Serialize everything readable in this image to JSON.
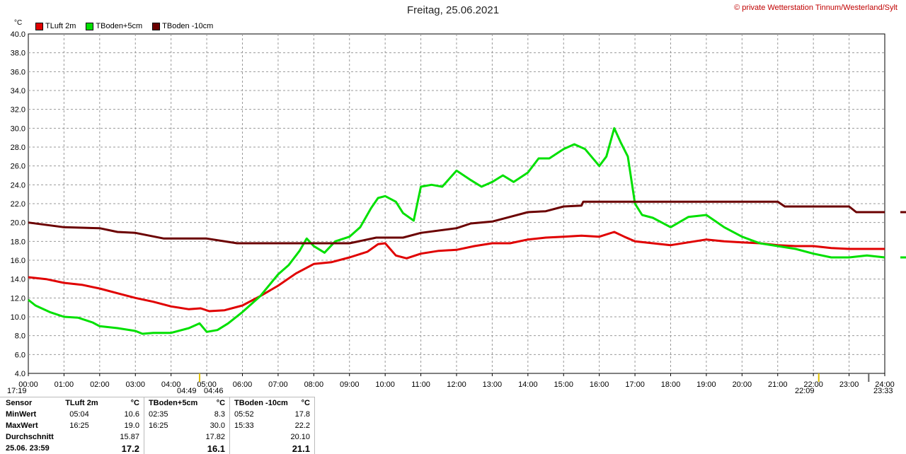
{
  "header": {
    "title": "Freitag, 25.06.2021",
    "credit": "© private Wetterstation Tinnum/Westerland/Sylt"
  },
  "chart_data": {
    "type": "line",
    "ylabel": "°C",
    "ylim": [
      4,
      40
    ],
    "yticks": [
      "4.0",
      "6.0",
      "8.0",
      "10.0",
      "12.0",
      "14.0",
      "16.0",
      "18.0",
      "20.0",
      "22.0",
      "24.0",
      "26.0",
      "28.0",
      "30.0",
      "32.0",
      "34.0",
      "36.0",
      "38.0",
      "40.0"
    ],
    "xlim": [
      0,
      24
    ],
    "xticks": [
      "00:00",
      "01:00",
      "02:00",
      "03:00",
      "04:00",
      "05:00",
      "06:00",
      "07:00",
      "08:00",
      "09:00",
      "10:00",
      "11:00",
      "12:00",
      "13:00",
      "14:00",
      "15:00",
      "16:00",
      "17:00",
      "18:00",
      "19:00",
      "20:00",
      "21:00",
      "22:00",
      "23:00",
      "24:00"
    ],
    "grid": true,
    "legend_position": "top-left",
    "series": [
      {
        "name": "TLuft 2m",
        "color": "#e00000",
        "points": [
          [
            0,
            14.2
          ],
          [
            0.5,
            14.0
          ],
          [
            1,
            13.6
          ],
          [
            1.5,
            13.4
          ],
          [
            2,
            13.0
          ],
          [
            2.5,
            12.5
          ],
          [
            3,
            12.0
          ],
          [
            3.5,
            11.6
          ],
          [
            4,
            11.1
          ],
          [
            4.5,
            10.8
          ],
          [
            4.83,
            10.9
          ],
          [
            5.07,
            10.6
          ],
          [
            5.5,
            10.7
          ],
          [
            6,
            11.2
          ],
          [
            6.5,
            12.2
          ],
          [
            7,
            13.3
          ],
          [
            7.5,
            14.6
          ],
          [
            8,
            15.6
          ],
          [
            8.5,
            15.8
          ],
          [
            9,
            16.3
          ],
          [
            9.5,
            16.9
          ],
          [
            9.8,
            17.7
          ],
          [
            10,
            17.8
          ],
          [
            10.3,
            16.5
          ],
          [
            10.6,
            16.2
          ],
          [
            11,
            16.7
          ],
          [
            11.5,
            17.0
          ],
          [
            12,
            17.1
          ],
          [
            12.5,
            17.5
          ],
          [
            13,
            17.8
          ],
          [
            13.5,
            17.8
          ],
          [
            14,
            18.2
          ],
          [
            14.5,
            18.4
          ],
          [
            15,
            18.5
          ],
          [
            15.5,
            18.6
          ],
          [
            16,
            18.5
          ],
          [
            16.42,
            19.0
          ],
          [
            16.7,
            18.5
          ],
          [
            17,
            18.0
          ],
          [
            17.5,
            17.8
          ],
          [
            18,
            17.6
          ],
          [
            18.5,
            17.9
          ],
          [
            19,
            18.2
          ],
          [
            19.5,
            18.0
          ],
          [
            20,
            17.9
          ],
          [
            20.5,
            17.8
          ],
          [
            21,
            17.6
          ],
          [
            21.5,
            17.5
          ],
          [
            22,
            17.5
          ],
          [
            22.5,
            17.3
          ],
          [
            23,
            17.2
          ],
          [
            23.5,
            17.2
          ],
          [
            24,
            17.2
          ]
        ]
      },
      {
        "name": "TBoden+5cm",
        "color": "#00e000",
        "points": [
          [
            0,
            11.8
          ],
          [
            0.2,
            11.2
          ],
          [
            0.6,
            10.5
          ],
          [
            1,
            10.0
          ],
          [
            1.4,
            9.9
          ],
          [
            1.8,
            9.4
          ],
          [
            2,
            9.0
          ],
          [
            2.5,
            8.8
          ],
          [
            3,
            8.5
          ],
          [
            3.2,
            8.2
          ],
          [
            3.5,
            8.3
          ],
          [
            4,
            8.3
          ],
          [
            4.5,
            8.8
          ],
          [
            4.8,
            9.3
          ],
          [
            5,
            8.4
          ],
          [
            5.3,
            8.6
          ],
          [
            5.6,
            9.3
          ],
          [
            6,
            10.5
          ],
          [
            6.5,
            12.2
          ],
          [
            7,
            14.5
          ],
          [
            7.3,
            15.5
          ],
          [
            7.6,
            17.0
          ],
          [
            7.8,
            18.3
          ],
          [
            8,
            17.5
          ],
          [
            8.3,
            16.8
          ],
          [
            8.6,
            18.0
          ],
          [
            9,
            18.5
          ],
          [
            9.3,
            19.5
          ],
          [
            9.6,
            21.5
          ],
          [
            9.8,
            22.6
          ],
          [
            10,
            22.8
          ],
          [
            10.3,
            22.2
          ],
          [
            10.5,
            21.0
          ],
          [
            10.8,
            20.2
          ],
          [
            11,
            23.8
          ],
          [
            11.3,
            24.0
          ],
          [
            11.6,
            23.8
          ],
          [
            12,
            25.5
          ],
          [
            12.4,
            24.5
          ],
          [
            12.7,
            23.8
          ],
          [
            13,
            24.3
          ],
          [
            13.3,
            25.0
          ],
          [
            13.6,
            24.3
          ],
          [
            14,
            25.3
          ],
          [
            14.3,
            26.8
          ],
          [
            14.6,
            26.8
          ],
          [
            15,
            27.8
          ],
          [
            15.3,
            28.3
          ],
          [
            15.6,
            27.8
          ],
          [
            16,
            26.0
          ],
          [
            16.2,
            27.0
          ],
          [
            16.42,
            30.0
          ],
          [
            16.6,
            28.5
          ],
          [
            16.8,
            27.0
          ],
          [
            17,
            22.0
          ],
          [
            17.2,
            20.8
          ],
          [
            17.5,
            20.5
          ],
          [
            18,
            19.5
          ],
          [
            18.5,
            20.6
          ],
          [
            19,
            20.8
          ],
          [
            19.5,
            19.5
          ],
          [
            20,
            18.5
          ],
          [
            20.5,
            17.8
          ],
          [
            21,
            17.5
          ],
          [
            21.5,
            17.2
          ],
          [
            22,
            16.7
          ],
          [
            22.5,
            16.3
          ],
          [
            23,
            16.3
          ],
          [
            23.5,
            16.5
          ],
          [
            24,
            16.3
          ]
        ]
      },
      {
        "name": "TBoden -10cm",
        "color": "#6b0000",
        "points": [
          [
            0,
            20.0
          ],
          [
            1,
            19.5
          ],
          [
            2,
            19.4
          ],
          [
            2.5,
            19.0
          ],
          [
            3,
            18.9
          ],
          [
            3.8,
            18.3
          ],
          [
            5,
            18.3
          ],
          [
            5.85,
            17.8
          ],
          [
            7,
            17.8
          ],
          [
            8,
            17.8
          ],
          [
            9,
            17.8
          ],
          [
            9.75,
            18.4
          ],
          [
            10.5,
            18.4
          ],
          [
            11,
            18.9
          ],
          [
            12,
            19.4
          ],
          [
            12.4,
            19.9
          ],
          [
            13,
            20.1
          ],
          [
            13.5,
            20.6
          ],
          [
            14,
            21.1
          ],
          [
            14.5,
            21.2
          ],
          [
            15,
            21.7
          ],
          [
            15.5,
            21.8
          ],
          [
            15.55,
            22.2
          ],
          [
            17,
            22.2
          ],
          [
            18,
            22.2
          ],
          [
            19,
            22.2
          ],
          [
            20,
            22.2
          ],
          [
            21,
            22.2
          ],
          [
            21.2,
            21.7
          ],
          [
            22,
            21.7
          ],
          [
            23,
            21.7
          ],
          [
            23.2,
            21.1
          ],
          [
            24,
            21.1
          ]
        ]
      }
    ]
  },
  "time_markers": {
    "sunrise_left": "17:19",
    "sunrise_mid_a": "04:49",
    "sunrise_mid_b": "04:46",
    "sunset_right_a": "22:09",
    "sunset_right_b": "23:33"
  },
  "stats": {
    "header": {
      "sensor": "Sensor",
      "s1": "TLuft 2m",
      "u1": "°C",
      "s2": "TBoden+5cm",
      "u2": "°C",
      "s3": "TBoden -10cm",
      "u3": "°C"
    },
    "rows": [
      {
        "label": "MinWert",
        "t1": "05:04",
        "v1": "10.6",
        "t2": "02:35",
        "v2": "8.3",
        "t3": "05:52",
        "v3": "17.8"
      },
      {
        "label": "MaxWert",
        "t1": "16:25",
        "v1": "19.0",
        "t2": "16:25",
        "v2": "30.0",
        "t3": "15:33",
        "v3": "22.2"
      },
      {
        "label": "Durchschnitt",
        "t1": "",
        "v1": "15.87",
        "t2": "",
        "v2": "17.82",
        "t3": "",
        "v3": "20.10"
      },
      {
        "label": "25.06. 23:59",
        "t1": "",
        "v1": "17.2",
        "t2": "",
        "v2": "16.1",
        "t3": "",
        "v3": "21.1"
      }
    ]
  }
}
